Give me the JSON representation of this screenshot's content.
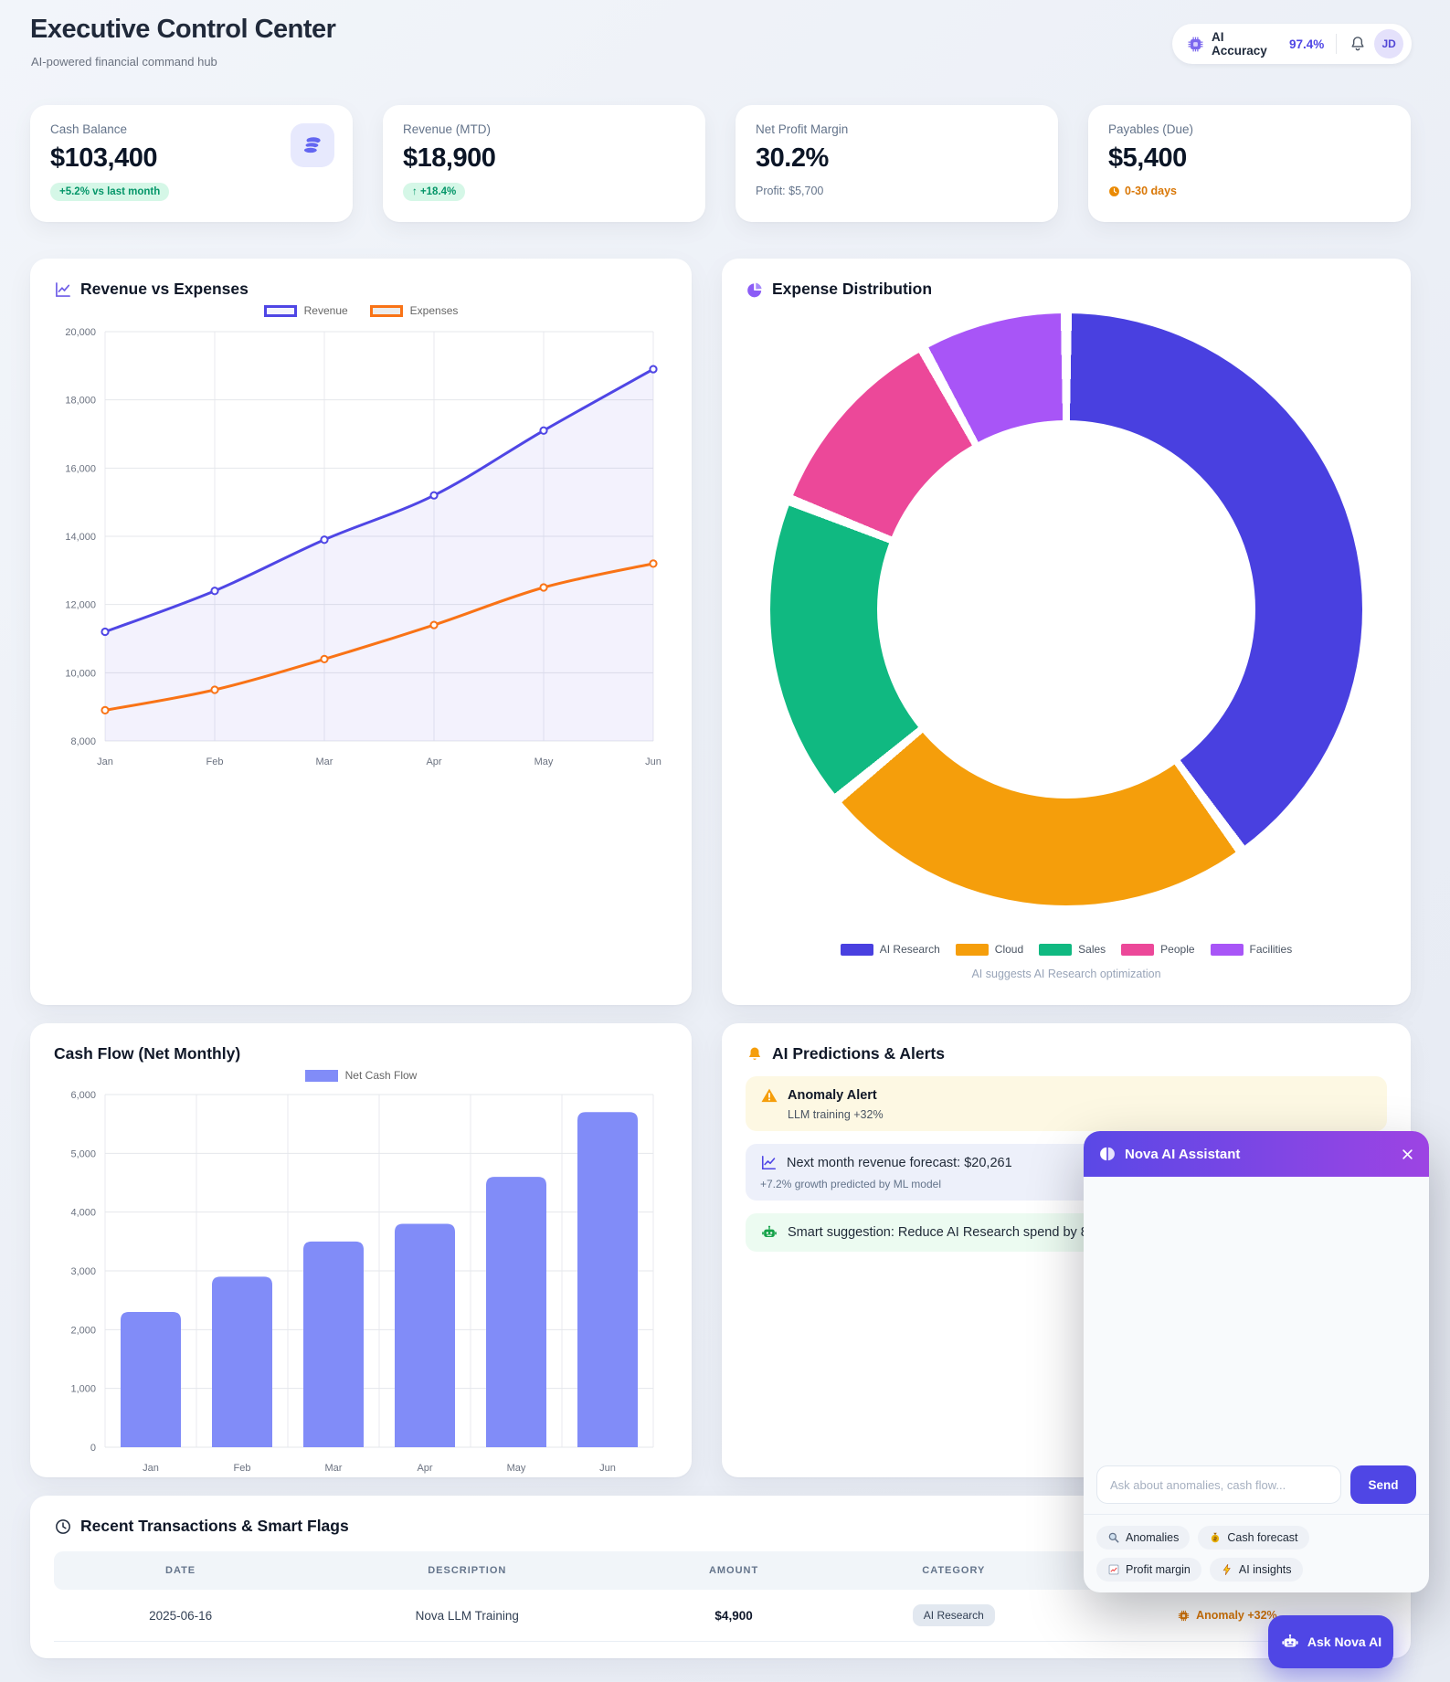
{
  "header": {
    "title": "Executive Control Center",
    "subtitle": "AI-powered financial command hub",
    "ai_accuracy_label": "AI Accuracy",
    "ai_accuracy_value": "97.4%",
    "avatar_initials": "JD"
  },
  "kpis": [
    {
      "label": "Cash Balance",
      "value": "$103,400",
      "badge": "+5.2% vs last month",
      "icon": "coins"
    },
    {
      "label": "Revenue (MTD)",
      "value": "$18,900",
      "badge": "↑ +18.4%"
    },
    {
      "label": "Net Profit Margin",
      "value": "30.2%",
      "subtext": "Profit: $5,700"
    },
    {
      "label": "Payables (Due)",
      "value": "$5,400",
      "subtext": "0-30 days"
    }
  ],
  "colors": {
    "accent_indigo": "#4f46e5",
    "expense_orange": "#f97316",
    "positive_green": "#059669",
    "warning_orange": "#d97706",
    "bar_indigo": "#818cf8"
  },
  "chart_data": [
    {
      "type": "line",
      "title": "Revenue vs Expenses",
      "x": [
        "Jan",
        "Feb",
        "Mar",
        "Apr",
        "May",
        "Jun"
      ],
      "series": [
        {
          "name": "Revenue",
          "color": "#4f46e5",
          "legend_fill": "#f4f4fd",
          "area_fill": "rgba(79,70,229,0.07)",
          "values": [
            11200,
            12400,
            13900,
            15200,
            17100,
            18900
          ]
        },
        {
          "name": "Expenses",
          "color": "#f97316",
          "legend_fill": "#ececec",
          "values": [
            8900,
            9500,
            10400,
            11400,
            12500,
            13200
          ]
        }
      ],
      "ylim": [
        8000,
        20000
      ],
      "ystep": 2000,
      "grid": true,
      "legend_position": "top"
    },
    {
      "type": "pie",
      "title": "Expense Distribution",
      "labels": [
        "AI Research",
        "Cloud",
        "Sales",
        "People",
        "Facilities"
      ],
      "values": [
        40,
        24,
        17,
        11,
        8
      ],
      "values_unit": "% share (estimated from arc angles)",
      "colors": [
        "#4940e0",
        "#f59e0b",
        "#10b981",
        "#ec4899",
        "#a855f7"
      ],
      "donut": true,
      "note": "AI suggests AI Research optimization",
      "legend_position": "bottom"
    },
    {
      "type": "bar",
      "title": "Cash Flow (Net Monthly)",
      "categories": [
        "Jan",
        "Feb",
        "Mar",
        "Apr",
        "May",
        "Jun"
      ],
      "series_name": "Net Cash Flow",
      "values": [
        2300,
        2900,
        3500,
        3800,
        4600,
        5700
      ],
      "color": "#818cf8",
      "ylim": [
        0,
        6000
      ],
      "ystep": 1000,
      "grid": true,
      "legend_position": "top"
    }
  ],
  "predictions": {
    "title": "AI Predictions & Alerts",
    "alerts": [
      {
        "type": "warning",
        "title": "Anomaly Alert",
        "text": "LLM training +32%"
      },
      {
        "type": "info",
        "title": "Next month revenue forecast: $20,261",
        "text": "+7.2% growth predicted by ML model"
      },
      {
        "type": "success",
        "title": "Smart suggestion: Reduce AI Research spend by 8%"
      }
    ]
  },
  "assistant": {
    "title": "Nova AI Assistant",
    "input_placeholder": "Ask about anomalies, cash flow...",
    "send_label": "Send",
    "chips": [
      {
        "icon": "magnifier-icon",
        "label": "Anomalies"
      },
      {
        "icon": "money-bag-icon",
        "label": "Cash forecast"
      },
      {
        "icon": "chart-frame-icon",
        "label": "Profit margin"
      },
      {
        "icon": "bolt-icon",
        "label": "AI insights"
      }
    ]
  },
  "transactions": {
    "title": "Recent Transactions & Smart Flags",
    "columns": [
      "DATE",
      "DESCRIPTION",
      "AMOUNT",
      "CATEGORY",
      ""
    ],
    "rows": [
      {
        "date": "2025-06-16",
        "description": "Nova LLM Training",
        "amount": "$4,900",
        "category": "AI Research",
        "flag": "Anomaly +32%"
      }
    ]
  },
  "fab": {
    "label": "Ask Nova AI"
  }
}
